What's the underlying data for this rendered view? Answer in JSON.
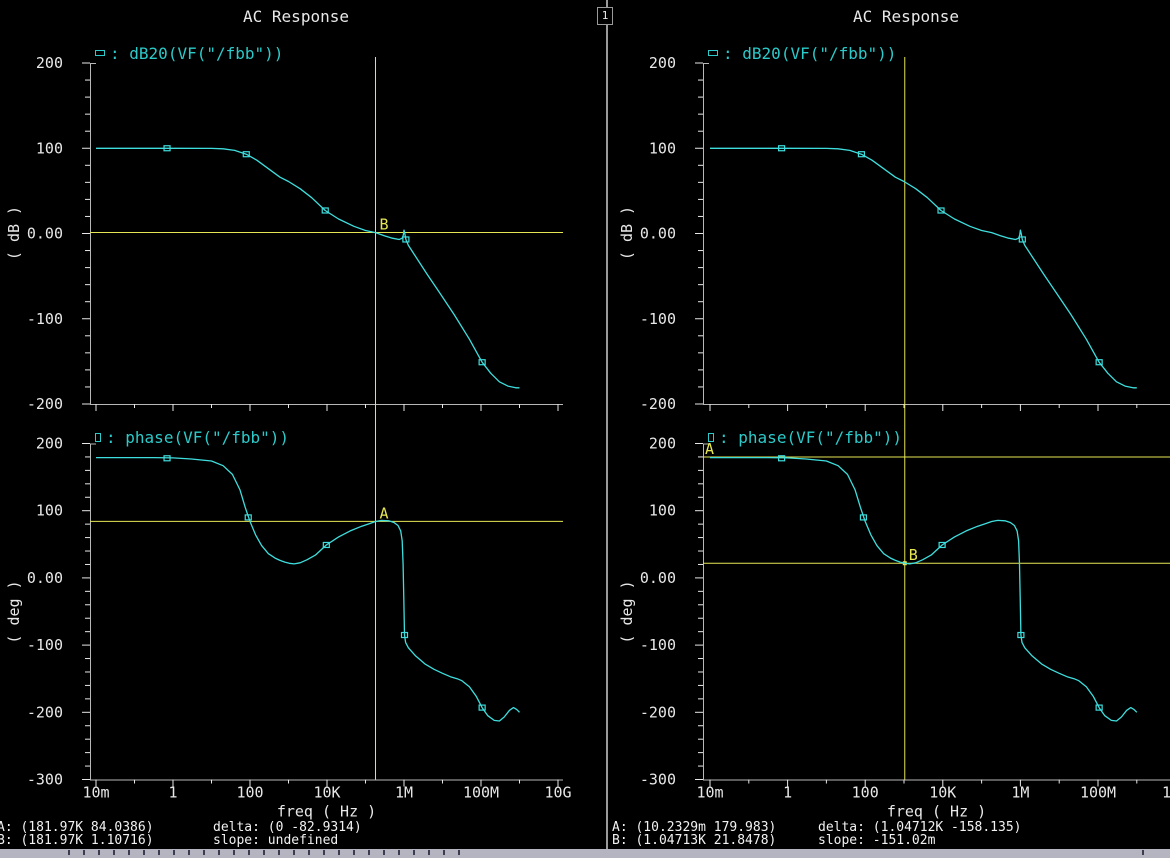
{
  "pane_tab": "1",
  "colors": {
    "background": "#000000",
    "trace_cyan": "#3fdede",
    "legend_cyan": "#2ccaca",
    "axis_line": "#b8b8b8",
    "tick_text": "#e8e8e8",
    "crosshair_yellow": "#e6e655",
    "divider_gray": "#9a9a9a",
    "status_text": "#f2f2f2",
    "bottom_strip": "#b5b5c2"
  },
  "legends": {
    "separator": ":",
    "gain": {
      "marker_icon": "dash-rect-series-marker",
      "text": "dB20(VF(\"/fbb\"))"
    },
    "phase": {
      "marker_icon": "square-series-marker",
      "text": "phase(VF(\"/fbb\"))"
    }
  },
  "axes": {
    "x": {
      "label": "freq ( Hz )",
      "scale": "log",
      "ticks": [
        {
          "decade": -2,
          "label": "10m"
        },
        {
          "decade": 0,
          "label": "1"
        },
        {
          "decade": 2,
          "label": "100"
        },
        {
          "decade": 4,
          "label": "10K"
        },
        {
          "decade": 6,
          "label": "1M"
        },
        {
          "decade": 8,
          "label": "100M"
        },
        {
          "decade": 10,
          "label": "10G"
        }
      ]
    },
    "gain_y": {
      "unit": "( dB )",
      "ticks": [
        {
          "v": 200,
          "label": "200"
        },
        {
          "v": 100,
          "label": "100"
        },
        {
          "v": 0,
          "label": "0.00"
        },
        {
          "v": -100,
          "label": "-100"
        },
        {
          "v": -200,
          "label": "-200"
        }
      ],
      "minor_step": 20,
      "vmax": 200,
      "vmin": -200
    },
    "phase_y": {
      "unit": "( deg )",
      "ticks": [
        {
          "v": 200,
          "label": "200"
        },
        {
          "v": 100,
          "label": "100"
        },
        {
          "v": 0,
          "label": "0.00"
        },
        {
          "v": -100,
          "label": "-100"
        },
        {
          "v": -200,
          "label": "-200"
        },
        {
          "v": -300,
          "label": "-300"
        }
      ],
      "minor_step": 20,
      "vmax": 200,
      "vmin": -300
    }
  },
  "panels": [
    {
      "id": "left",
      "title": "AC Response",
      "crosshair": {
        "v_freq": 181970,
        "h_lines": [
          {
            "plot": "gain",
            "value": 1.10716,
            "label": "B",
            "label_pos": "vline",
            "dot": false
          },
          {
            "plot": "phase",
            "value": 84.0386,
            "label": "A",
            "label_pos": "vline",
            "dot": false
          }
        ]
      },
      "status": {
        "a": "A: (181.97K 84.0386)",
        "delta": "delta: (0 -82.9314)",
        "b": "B: (181.97K 1.10716)",
        "slope": "slope: undefined"
      }
    },
    {
      "id": "right",
      "title": "AC Response",
      "crosshair": {
        "v_freq": 1047.13,
        "h_lines": [
          {
            "plot": "phase",
            "value": 179.983,
            "label": "A",
            "label_pos": "left",
            "dot": false
          },
          {
            "plot": "phase",
            "value": 21.8478,
            "label": "B",
            "label_pos": "vline",
            "dot": true
          }
        ]
      },
      "status": {
        "a": "A: (10.2329m 179.983)",
        "delta": "delta: (1.04712K -158.135)",
        "b": "B: (1.04713K 21.8478)",
        "slope": "slope: -151.02m"
      }
    }
  ],
  "chart_data": {
    "type": "line",
    "title": "AC Response",
    "xlabel": "freq ( Hz )",
    "x_scale": "log",
    "x_range": [
      0.01,
      10000000000
    ],
    "legend_position": "top-left",
    "grid": false,
    "series": [
      {
        "name": "dB20(VF(\"/fbb\"))",
        "unit": "dB",
        "y_range": [
          -200,
          200
        ],
        "points": [
          [
            0.01,
            100
          ],
          [
            1,
            100
          ],
          [
            10,
            99.8
          ],
          [
            20,
            99.3
          ],
          [
            40,
            97.5
          ],
          [
            80,
            93
          ],
          [
            150,
            86
          ],
          [
            300,
            76
          ],
          [
            600,
            66
          ],
          [
            1000,
            61
          ],
          [
            2000,
            52.5
          ],
          [
            4000,
            42
          ],
          [
            9000,
            27
          ],
          [
            20000,
            17
          ],
          [
            50000,
            8.5
          ],
          [
            100000,
            3.5
          ],
          [
            181970,
            1.1
          ],
          [
            300000,
            -2.5
          ],
          [
            500000,
            -5.5
          ],
          [
            750000,
            -7
          ],
          [
            900000,
            -5.5
          ],
          [
            960000,
            -2
          ],
          [
            1000000,
            4
          ],
          [
            1050000,
            0
          ],
          [
            1120000,
            -7
          ],
          [
            1300000,
            -14
          ],
          [
            2000000,
            -27
          ],
          [
            4000000,
            -48
          ],
          [
            8000000,
            -68
          ],
          [
            20000000,
            -95
          ],
          [
            50000000,
            -124
          ],
          [
            107000000,
            -151
          ],
          [
            180000000,
            -164
          ],
          [
            300000000,
            -174
          ],
          [
            500000000,
            -179
          ],
          [
            800000000,
            -181
          ],
          [
            1000000000,
            -181
          ]
        ],
        "marker_points": [
          [
            0.7,
            100
          ],
          [
            80,
            93
          ],
          [
            9000,
            27
          ],
          [
            1120000,
            -7
          ],
          [
            107000000,
            -151
          ]
        ]
      },
      {
        "name": "phase(VF(\"/fbb\"))",
        "unit": "deg",
        "y_range": [
          -300,
          200
        ],
        "points": [
          [
            0.01,
            179
          ],
          [
            0.3,
            179
          ],
          [
            1,
            178.5
          ],
          [
            3,
            177
          ],
          [
            10,
            174
          ],
          [
            20,
            167
          ],
          [
            35,
            154
          ],
          [
            55,
            131
          ],
          [
            75,
            105
          ],
          [
            100,
            84
          ],
          [
            140,
            64
          ],
          [
            200,
            48
          ],
          [
            300,
            36
          ],
          [
            450,
            29.5
          ],
          [
            600,
            26
          ],
          [
            800,
            23.5
          ],
          [
            1047,
            21.8
          ],
          [
            1400,
            20.8
          ],
          [
            2000,
            22.5
          ],
          [
            3000,
            27
          ],
          [
            5000,
            34
          ],
          [
            9600,
            49
          ],
          [
            20000,
            61
          ],
          [
            40000,
            70
          ],
          [
            80000,
            77
          ],
          [
            130000,
            81
          ],
          [
            181970,
            84
          ],
          [
            260000,
            85.5
          ],
          [
            400000,
            85
          ],
          [
            550000,
            82.5
          ],
          [
            700000,
            78
          ],
          [
            820000,
            70
          ],
          [
            900000,
            55
          ],
          [
            950000,
            20
          ],
          [
            990000,
            -30
          ],
          [
            1030000,
            -85
          ],
          [
            1100000,
            -96
          ],
          [
            1300000,
            -104
          ],
          [
            2000000,
            -116
          ],
          [
            3500000,
            -128
          ],
          [
            6000000,
            -136
          ],
          [
            10000000,
            -142
          ],
          [
            16000000,
            -147
          ],
          [
            24000000,
            -150
          ],
          [
            32000000,
            -153
          ],
          [
            50000000,
            -162
          ],
          [
            75000000,
            -176
          ],
          [
            107000000,
            -193
          ],
          [
            150000000,
            -205
          ],
          [
            220000000,
            -212
          ],
          [
            300000000,
            -213
          ],
          [
            400000000,
            -207
          ],
          [
            550000000,
            -197
          ],
          [
            700000000,
            -193
          ],
          [
            850000000,
            -196
          ],
          [
            1000000000,
            -200
          ]
        ],
        "marker_points": [
          [
            0.7,
            178
          ],
          [
            90,
            90
          ],
          [
            9600,
            49
          ],
          [
            1030000,
            -85
          ],
          [
            107000000,
            -193
          ]
        ]
      }
    ],
    "annotations": [
      {
        "window": "left",
        "marker": "A",
        "x": "181.97K",
        "y": "84.0386"
      },
      {
        "window": "left",
        "marker": "B",
        "x": "181.97K",
        "y": "1.10716"
      },
      {
        "window": "left",
        "delta": "(0 -82.9314)",
        "slope": "undefined"
      },
      {
        "window": "right",
        "marker": "A",
        "x": "10.2329m",
        "y": "179.983"
      },
      {
        "window": "right",
        "marker": "B",
        "x": "1.04713K",
        "y": "21.8478"
      },
      {
        "window": "right",
        "delta": "(1.04712K -158.135)",
        "slope": "-151.02m"
      }
    ]
  }
}
